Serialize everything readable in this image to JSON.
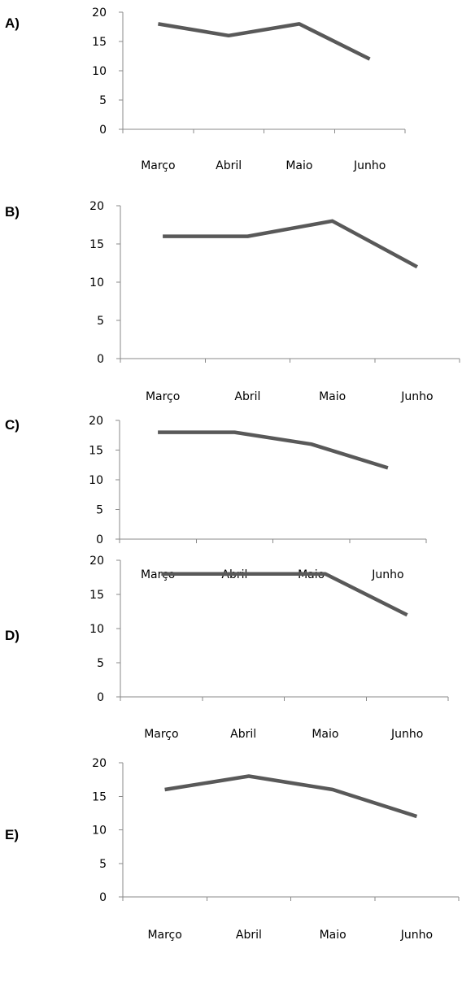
{
  "colors": {
    "series": "#595959",
    "axis": "#8a8a8a",
    "text": "#000000"
  },
  "chart_data": [
    {
      "type": "line",
      "option": "A)",
      "categories": [
        "Março",
        "Abril",
        "Maio",
        "Junho"
      ],
      "series": [
        {
          "values": [
            18,
            16,
            18,
            12
          ]
        }
      ],
      "yticks": [
        "0",
        "5",
        "10",
        "15",
        "20"
      ],
      "ylim": [
        0,
        20
      ],
      "grid": false,
      "legend": "none"
    },
    {
      "type": "line",
      "option": "B)",
      "categories": [
        "Março",
        "Abril",
        "Maio",
        "Junho"
      ],
      "series": [
        {
          "values": [
            16,
            16,
            18,
            12
          ]
        }
      ],
      "yticks": [
        "0",
        "5",
        "10",
        "15",
        "20"
      ],
      "ylim": [
        0,
        20
      ],
      "grid": false,
      "legend": "none"
    },
    {
      "type": "line",
      "option": "C)",
      "categories": [
        "Março",
        "Abril",
        "Maio",
        "Junho"
      ],
      "series": [
        {
          "values": [
            18,
            18,
            16,
            12
          ]
        }
      ],
      "yticks": [
        "0",
        "5",
        "10",
        "15",
        "20"
      ],
      "ylim": [
        0,
        20
      ],
      "grid": false,
      "legend": "none"
    },
    {
      "type": "line",
      "option": "D)",
      "categories": [
        "Março",
        "Abril",
        "Maio",
        "Junho"
      ],
      "series": [
        {
          "values": [
            18,
            18,
            18,
            12
          ]
        }
      ],
      "yticks": [
        "0",
        "5",
        "10",
        "15",
        "20"
      ],
      "ylim": [
        0,
        20
      ],
      "grid": false,
      "legend": "none"
    },
    {
      "type": "line",
      "option": "E)",
      "categories": [
        "Março",
        "Abril",
        "Maio",
        "Junho"
      ],
      "series": [
        {
          "values": [
            16,
            18,
            16,
            12
          ]
        }
      ],
      "yticks": [
        "0",
        "5",
        "10",
        "15",
        "20"
      ],
      "ylim": [
        0,
        20
      ],
      "grid": false,
      "legend": "none"
    }
  ]
}
